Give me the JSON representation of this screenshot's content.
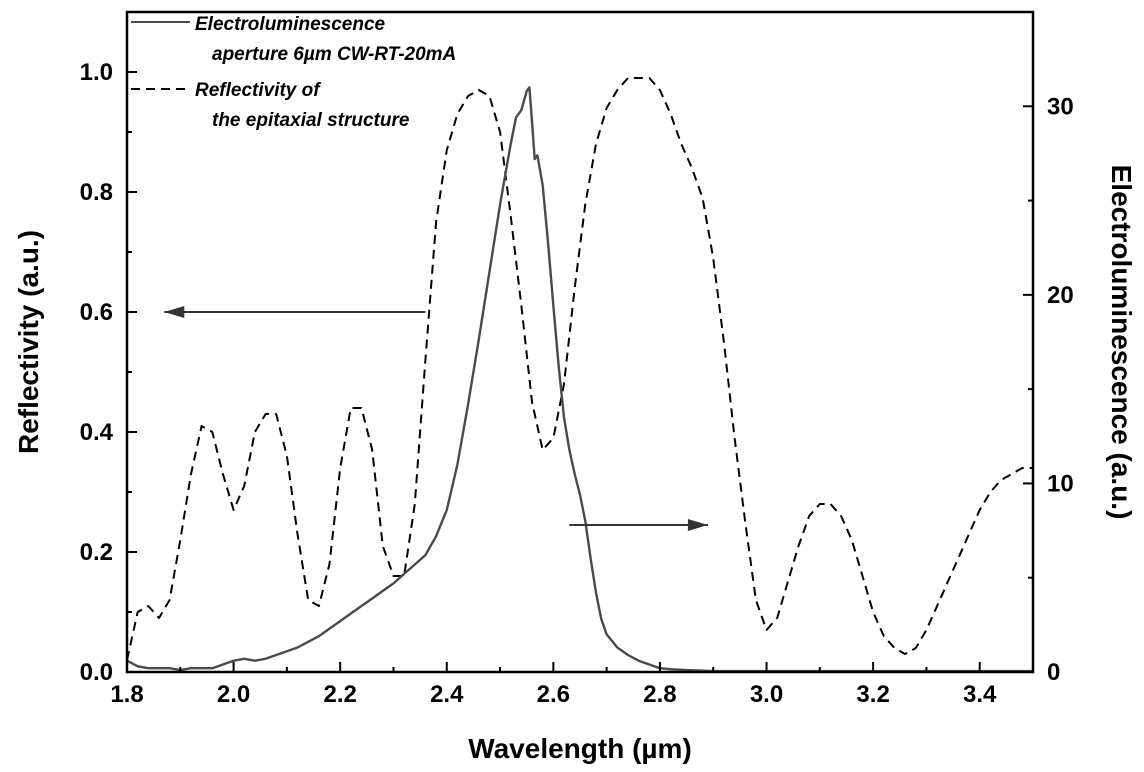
{
  "chart_data": {
    "type": "line",
    "xlabel": "Wavelength (µm)",
    "ylabel_left": "Reflectivity (a.u.)",
    "ylabel_right": "Electroluminescence (a.u.)",
    "xlim": [
      1.8,
      3.5
    ],
    "ylim_left": [
      0,
      1.1
    ],
    "ylim_right": [
      0,
      35
    ],
    "x_ticks": [
      "1.8",
      "2.0",
      "2.2",
      "2.4",
      "2.6",
      "2.8",
      "3.0",
      "3.2",
      "3.4"
    ],
    "y_left_ticks": [
      "0.0",
      "0.2",
      "0.4",
      "0.6",
      "0.8",
      "1.0"
    ],
    "y_right_ticks": [
      "0",
      "10",
      "20",
      "30"
    ],
    "grid": false,
    "legend": [
      {
        "lines": [
          "Electroluminescence",
          "aperture 6µm CW-RT-20mA"
        ],
        "style": "solid"
      },
      {
        "lines": [
          "Reflectivity of",
          "the epitaxial structure"
        ],
        "style": "dashed"
      }
    ],
    "series": [
      {
        "style": "dashed",
        "axis": "left",
        "color": "#000000",
        "x": [
          1.8,
          1.82,
          1.84,
          1.86,
          1.88,
          1.9,
          1.92,
          1.94,
          1.96,
          1.98,
          2.0,
          2.02,
          2.04,
          2.06,
          2.08,
          2.1,
          2.12,
          2.14,
          2.16,
          2.18,
          2.2,
          2.22,
          2.24,
          2.26,
          2.28,
          2.3,
          2.32,
          2.34,
          2.36,
          2.38,
          2.4,
          2.42,
          2.44,
          2.46,
          2.48,
          2.5,
          2.52,
          2.54,
          2.56,
          2.58,
          2.6,
          2.62,
          2.64,
          2.66,
          2.68,
          2.7,
          2.72,
          2.74,
          2.76,
          2.78,
          2.8,
          2.82,
          2.84,
          2.86,
          2.88,
          2.9,
          2.92,
          2.94,
          2.96,
          2.98,
          3.0,
          3.02,
          3.04,
          3.06,
          3.08,
          3.1,
          3.12,
          3.14,
          3.16,
          3.18,
          3.2,
          3.22,
          3.24,
          3.26,
          3.28,
          3.3,
          3.32,
          3.34,
          3.36,
          3.38,
          3.4,
          3.42,
          3.44,
          3.46,
          3.48,
          3.5
        ],
        "y": [
          0.02,
          0.1,
          0.11,
          0.09,
          0.12,
          0.22,
          0.33,
          0.41,
          0.4,
          0.33,
          0.27,
          0.31,
          0.4,
          0.43,
          0.43,
          0.36,
          0.23,
          0.12,
          0.11,
          0.18,
          0.34,
          0.44,
          0.44,
          0.37,
          0.21,
          0.16,
          0.16,
          0.28,
          0.52,
          0.75,
          0.87,
          0.93,
          0.96,
          0.97,
          0.96,
          0.9,
          0.76,
          0.61,
          0.45,
          0.37,
          0.39,
          0.48,
          0.64,
          0.78,
          0.88,
          0.94,
          0.97,
          0.99,
          0.99,
          0.99,
          0.97,
          0.93,
          0.88,
          0.84,
          0.79,
          0.69,
          0.55,
          0.39,
          0.25,
          0.12,
          0.07,
          0.09,
          0.15,
          0.21,
          0.26,
          0.28,
          0.28,
          0.26,
          0.22,
          0.16,
          0.1,
          0.06,
          0.04,
          0.03,
          0.04,
          0.07,
          0.11,
          0.15,
          0.19,
          0.23,
          0.27,
          0.3,
          0.32,
          0.33,
          0.34,
          0.34
        ]
      },
      {
        "style": "solid",
        "axis": "right",
        "color": "#4a4a4a",
        "x": [
          1.8,
          1.82,
          1.84,
          1.86,
          1.88,
          1.9,
          1.92,
          1.94,
          1.96,
          1.98,
          2.0,
          2.02,
          2.04,
          2.06,
          2.08,
          2.1,
          2.12,
          2.14,
          2.16,
          2.18,
          2.2,
          2.22,
          2.24,
          2.26,
          2.28,
          2.3,
          2.32,
          2.34,
          2.36,
          2.38,
          2.4,
          2.42,
          2.44,
          2.46,
          2.48,
          2.5,
          2.52,
          2.53,
          2.54,
          2.55,
          2.555,
          2.56,
          2.565,
          2.57,
          2.58,
          2.59,
          2.6,
          2.61,
          2.62,
          2.63,
          2.64,
          2.65,
          2.66,
          2.67,
          2.68,
          2.69,
          2.7,
          2.72,
          2.74,
          2.76,
          2.78,
          2.8,
          2.82,
          2.85,
          2.9,
          3.0,
          3.1,
          3.2,
          3.3,
          3.4,
          3.5
        ],
        "y": [
          0.6,
          0.3,
          0.2,
          0.2,
          0.2,
          0.1,
          0.2,
          0.2,
          0.2,
          0.4,
          0.6,
          0.7,
          0.6,
          0.7,
          0.9,
          1.1,
          1.3,
          1.6,
          1.9,
          2.3,
          2.7,
          3.1,
          3.5,
          3.9,
          4.3,
          4.7,
          5.2,
          5.7,
          6.2,
          7.2,
          8.6,
          11.0,
          14.2,
          17.6,
          21.2,
          24.8,
          28.0,
          29.4,
          29.8,
          30.8,
          31.0,
          29.2,
          27.2,
          27.4,
          25.8,
          22.8,
          19.4,
          16.2,
          13.5,
          11.8,
          10.5,
          9.4,
          8.0,
          6.0,
          4.2,
          2.8,
          2.0,
          1.3,
          0.9,
          0.6,
          0.4,
          0.2,
          0.15,
          0.1,
          0.05,
          0.05,
          0.05,
          0.05,
          0.05,
          0.05,
          0.05
        ]
      }
    ],
    "annotations": [
      {
        "type": "arrow",
        "direction": "left",
        "meaning": "dashed curve uses left axis"
      },
      {
        "type": "arrow",
        "direction": "right",
        "meaning": "solid curve uses right axis"
      }
    ]
  }
}
